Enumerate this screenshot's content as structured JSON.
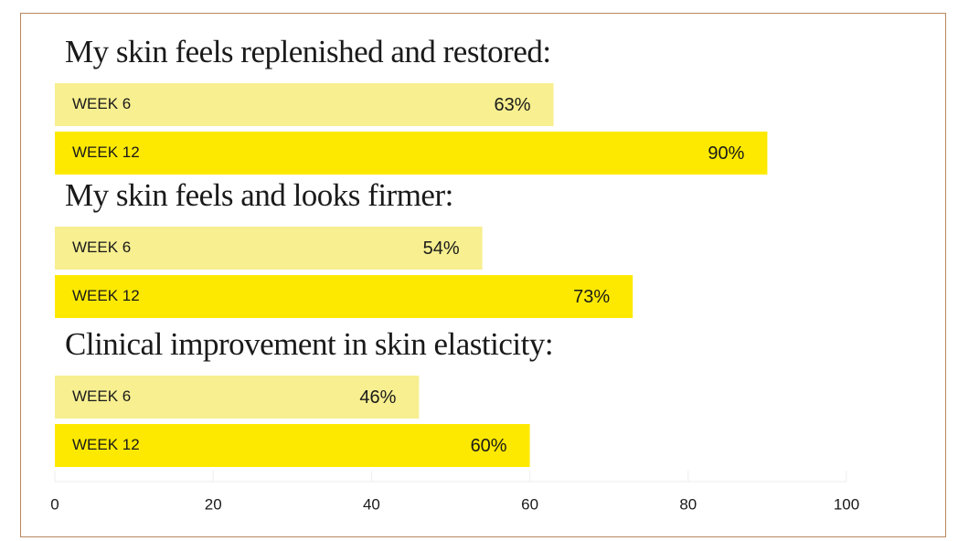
{
  "chart_data": {
    "type": "bar",
    "categories": [
      "My skin feels replenished and restored:",
      "My skin feels and looks firmer:",
      "Clinical improvement in skin elasticity:"
    ],
    "series": [
      {
        "name": "WEEK 6",
        "color": "#f7ef90",
        "values": [
          63,
          54,
          46
        ],
        "value_labels": [
          "63%",
          "54%",
          "46%"
        ]
      },
      {
        "name": "WEEK 12",
        "color": "#fde900",
        "values": [
          90,
          73,
          60
        ],
        "value_labels": [
          "90%",
          "73%",
          "60%"
        ]
      }
    ],
    "xlim": [
      0,
      100
    ],
    "xticks": [
      0,
      20,
      40,
      60,
      80,
      100
    ]
  }
}
